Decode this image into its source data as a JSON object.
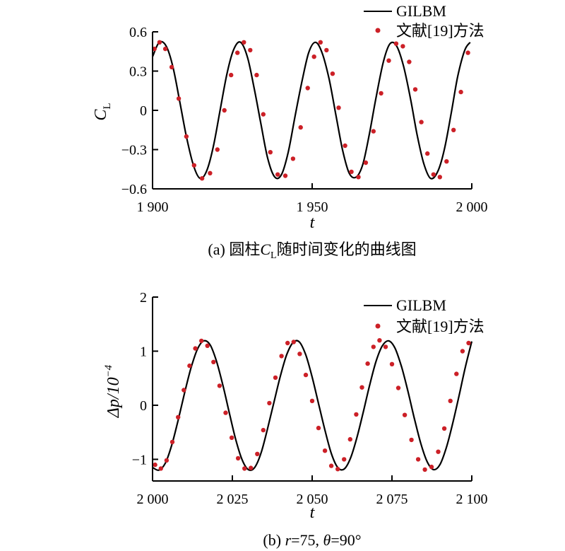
{
  "chart_data": [
    {
      "type": "line",
      "panel": "a",
      "caption_parts": [
        "(a) 圆柱",
        "C",
        "L",
        "随时间变化的曲线图"
      ],
      "ylabel_parts": [
        "C",
        "L"
      ],
      "xlabel": "t",
      "xlim": [
        1900,
        2000
      ],
      "ylim": [
        -0.6,
        0.6
      ],
      "xticks": [
        1900,
        1950,
        2000
      ],
      "xtick_labels": [
        "1 900",
        "1 950",
        "2 000"
      ],
      "yticks": [
        0.6,
        0.3,
        0,
        -0.3,
        -0.6
      ],
      "ytick_labels": [
        "0.6",
        "0.3",
        "0",
        "−0.3",
        "−0.6"
      ],
      "legend": {
        "position": "top-right",
        "entries": [
          "GILBM",
          "文献[19]方法"
        ]
      },
      "grid": false,
      "series": [
        {
          "name": "GILBM",
          "style": "line",
          "color": "#000000",
          "x": [
            1900,
            1902.1,
            1904.3,
            1906.4,
            1908.5,
            1910.6,
            1912.8,
            1914.9,
            1917,
            1919.1,
            1921.3,
            1923.4,
            1925.5,
            1927.6,
            1929.8,
            1931.9,
            1934,
            1936.1,
            1938.3,
            1940.4,
            1942.5,
            1944.6,
            1946.8,
            1948.9,
            1951,
            1953.1,
            1955.3,
            1957.4,
            1959.5,
            1961.6,
            1963.8,
            1965.9,
            1968,
            1970.1,
            1972.3,
            1974.4,
            1976.5,
            1978.6,
            1980.8,
            1982.9,
            1985,
            1987.1,
            1989.3,
            1991.4,
            1993.5,
            1995.6,
            1997.8,
            1999.5
          ],
          "y": [
            0.41,
            0.52,
            0.49,
            0.33,
            0.07,
            -0.2,
            -0.42,
            -0.52,
            -0.46,
            -0.27,
            0.02,
            0.29,
            0.47,
            0.52,
            0.4,
            0.16,
            -0.11,
            -0.37,
            -0.51,
            -0.49,
            -0.32,
            -0.05,
            0.22,
            0.44,
            0.52,
            0.44,
            0.24,
            -0.03,
            -0.3,
            -0.48,
            -0.51,
            -0.41,
            -0.17,
            0.11,
            0.37,
            0.51,
            0.49,
            0.34,
            0.09,
            -0.19,
            -0.41,
            -0.52,
            -0.47,
            -0.3,
            -0.03,
            0.26,
            0.46,
            0.52
          ]
        },
        {
          "name": "文献[19]方法",
          "style": "markers",
          "color": "#cc2027",
          "x": [
            1900.6,
            1902.2,
            1904,
            1906,
            1908.2,
            1910.6,
            1913,
            1915.5,
            1918,
            1920.3,
            1922.5,
            1924.6,
            1926.6,
            1928.6,
            1930.6,
            1932.6,
            1934.7,
            1936.9,
            1939.2,
            1941.6,
            1944,
            1946.4,
            1948.6,
            1950.6,
            1952.6,
            1954.5,
            1956.4,
            1958.3,
            1960.3,
            1962.3,
            1964.5,
            1966.8,
            1969.2,
            1971.6,
            1974,
            1976.3,
            1978.4,
            1980.4,
            1982.3,
            1984.2,
            1986.1,
            1988,
            1990,
            1992.1,
            1994.3,
            1996.6,
            1998.8
          ],
          "y": [
            0.47,
            0.52,
            0.47,
            0.33,
            0.09,
            -0.2,
            -0.42,
            -0.52,
            -0.48,
            -0.3,
            0,
            0.27,
            0.44,
            0.52,
            0.46,
            0.27,
            -0.03,
            -0.32,
            -0.49,
            -0.5,
            -0.37,
            -0.13,
            0.17,
            0.41,
            0.52,
            0.46,
            0.28,
            0.02,
            -0.27,
            -0.47,
            -0.51,
            -0.4,
            -0.16,
            0.13,
            0.38,
            0.51,
            0.49,
            0.37,
            0.16,
            -0.09,
            -0.33,
            -0.49,
            -0.51,
            -0.39,
            -0.15,
            0.14,
            0.44
          ]
        }
      ]
    },
    {
      "type": "line",
      "panel": "b",
      "caption_parts": [
        "(b) ",
        "r",
        "=75, ",
        "θ",
        "=90°"
      ],
      "ylabel_parts": [
        "Δ",
        "p",
        "/10",
        "−4"
      ],
      "xlabel": "t",
      "xlim": [
        2000,
        2100
      ],
      "ylim": [
        -1.4,
        2
      ],
      "xticks": [
        2000,
        2025,
        2050,
        2075,
        2100
      ],
      "xtick_labels": [
        "2 000",
        "2 025",
        "2 050",
        "2 075",
        "2 100"
      ],
      "yticks": [
        2,
        1,
        0,
        -1
      ],
      "ytick_labels": [
        "2",
        "1",
        "0",
        "−1"
      ],
      "legend": {
        "position": "top-right",
        "entries": [
          "GILBM",
          "文献[19]方法"
        ]
      },
      "grid": false,
      "series": [
        {
          "name": "GILBM",
          "style": "line",
          "color": "#000000",
          "x": [
            2000,
            2002,
            2004,
            2006,
            2008,
            2010,
            2012,
            2014,
            2016,
            2018,
            2020,
            2022,
            2024,
            2026,
            2028,
            2030,
            2032,
            2034,
            2036,
            2038,
            2040,
            2042,
            2044,
            2046,
            2048,
            2050,
            2052,
            2054,
            2056,
            2058,
            2060,
            2062,
            2064,
            2066,
            2068,
            2070,
            2072,
            2074,
            2076,
            2078,
            2080,
            2082,
            2084,
            2086,
            2088,
            2090,
            2092,
            2094,
            2096,
            2098,
            2100
          ],
          "y": [
            -1.15,
            -1.2,
            -1.07,
            -0.74,
            -0.28,
            0.22,
            0.68,
            1.03,
            1.19,
            1.12,
            0.82,
            0.38,
            -0.13,
            -0.62,
            -1.0,
            -1.19,
            -1.15,
            -0.88,
            -0.44,
            0.05,
            0.53,
            0.93,
            1.16,
            1.17,
            0.93,
            0.52,
            0.03,
            -0.46,
            -0.89,
            -1.15,
            -1.18,
            -0.98,
            -0.6,
            -0.13,
            0.37,
            0.81,
            1.1,
            1.19,
            1.05,
            0.71,
            0.26,
            -0.24,
            -0.7,
            -1.04,
            -1.19,
            -1.1,
            -0.79,
            -0.34,
            0.17,
            0.71,
            1.18
          ]
        },
        {
          "name": "文献[19]方法",
          "style": "markers",
          "color": "#cc2027",
          "x": [
            2000.8,
            2002.6,
            2004.4,
            2006.2,
            2008,
            2009.8,
            2011.6,
            2013.4,
            2015.3,
            2017.2,
            2019.1,
            2021,
            2022.9,
            2024.8,
            2026.8,
            2028.8,
            2030.8,
            2032.8,
            2034.7,
            2036.6,
            2038.5,
            2040.4,
            2042.3,
            2044.2,
            2046.1,
            2048,
            2050,
            2052,
            2054,
            2056,
            2058,
            2060,
            2061.9,
            2063.8,
            2065.6,
            2067.4,
            2069.2,
            2071.1,
            2073,
            2075,
            2077,
            2079,
            2081.1,
            2083.2,
            2085.3,
            2087.4,
            2089.5,
            2091.4,
            2093.3,
            2095.2,
            2097.1,
            2099
          ],
          "y": [
            -1.1,
            -1.17,
            -1.02,
            -0.68,
            -0.22,
            0.28,
            0.73,
            1.05,
            1.19,
            1.1,
            0.8,
            0.36,
            -0.14,
            -0.6,
            -0.98,
            -1.17,
            -1.16,
            -0.9,
            -0.46,
            0.04,
            0.51,
            0.91,
            1.15,
            1.17,
            0.95,
            0.56,
            0.08,
            -0.42,
            -0.84,
            -1.12,
            -1.18,
            -1.0,
            -0.63,
            -0.17,
            0.33,
            0.77,
            1.08,
            1.2,
            1.08,
            0.76,
            0.32,
            -0.18,
            -0.64,
            -1.0,
            -1.19,
            -1.14,
            -0.86,
            -0.43,
            0.08,
            0.58,
            1.0,
            1.15
          ]
        }
      ]
    }
  ]
}
